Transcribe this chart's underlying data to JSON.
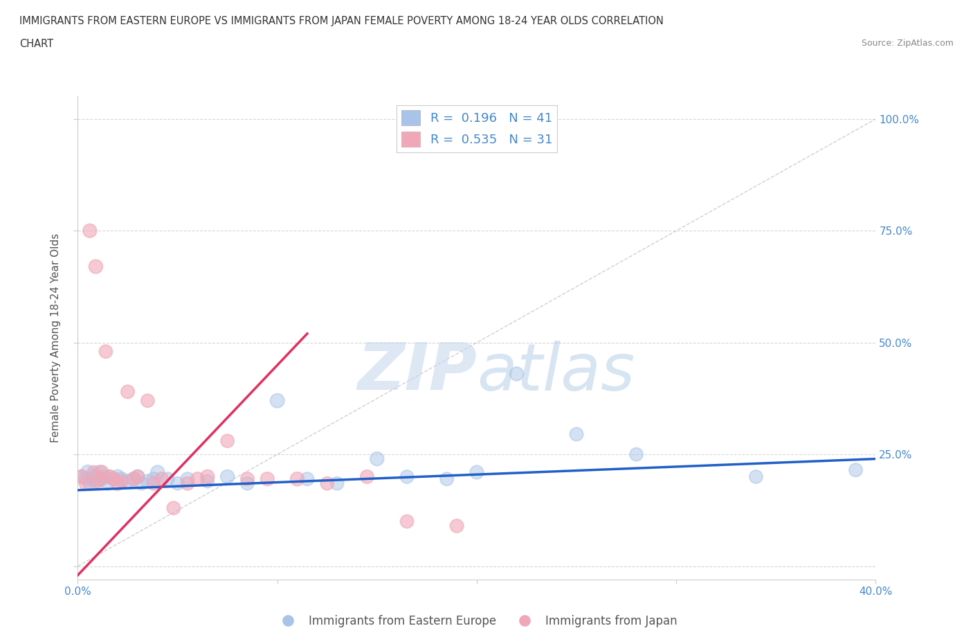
{
  "title_line1": "IMMIGRANTS FROM EASTERN EUROPE VS IMMIGRANTS FROM JAPAN FEMALE POVERTY AMONG 18-24 YEAR OLDS CORRELATION",
  "title_line2": "CHART",
  "source_text": "Source: ZipAtlas.com",
  "ylabel": "Female Poverty Among 18-24 Year Olds",
  "xlim": [
    0.0,
    0.4
  ],
  "ylim": [
    -0.03,
    1.05
  ],
  "watermark_zip": "ZIP",
  "watermark_atlas": "atlas",
  "R_blue": 0.196,
  "N_blue": 41,
  "R_pink": 0.535,
  "N_pink": 31,
  "legend_label_blue": "Immigrants from Eastern Europe",
  "legend_label_pink": "Immigrants from Japan",
  "blue_color": "#a8c4e8",
  "pink_color": "#f0a8b8",
  "blue_line_color": "#2060c8",
  "pink_line_color": "#e03060",
  "scatter_blue": {
    "x": [
      0.002,
      0.004,
      0.005,
      0.006,
      0.007,
      0.008,
      0.009,
      0.01,
      0.011,
      0.012,
      0.013,
      0.015,
      0.016,
      0.018,
      0.02,
      0.022,
      0.025,
      0.028,
      0.03,
      0.032,
      0.035,
      0.038,
      0.04,
      0.045,
      0.05,
      0.055,
      0.065,
      0.075,
      0.085,
      0.1,
      0.115,
      0.13,
      0.15,
      0.165,
      0.185,
      0.2,
      0.22,
      0.25,
      0.28,
      0.34,
      0.39
    ],
    "y": [
      0.2,
      0.195,
      0.21,
      0.185,
      0.195,
      0.2,
      0.19,
      0.195,
      0.21,
      0.195,
      0.2,
      0.185,
      0.2,
      0.195,
      0.2,
      0.195,
      0.19,
      0.195,
      0.2,
      0.185,
      0.19,
      0.195,
      0.21,
      0.195,
      0.185,
      0.195,
      0.19,
      0.2,
      0.185,
      0.37,
      0.195,
      0.185,
      0.24,
      0.2,
      0.195,
      0.21,
      0.43,
      0.295,
      0.25,
      0.2,
      0.215
    ],
    "sizes": [
      200,
      180,
      220,
      190,
      200,
      210,
      195,
      200,
      210,
      195,
      200,
      185,
      190,
      200,
      205,
      195,
      190,
      200,
      195,
      185,
      190,
      195,
      200,
      190,
      185,
      190,
      185,
      200,
      185,
      210,
      190,
      185,
      200,
      185,
      190,
      195,
      200,
      190,
      185,
      185,
      190
    ]
  },
  "scatter_pink": {
    "x": [
      0.002,
      0.004,
      0.006,
      0.008,
      0.009,
      0.01,
      0.011,
      0.012,
      0.014,
      0.016,
      0.018,
      0.02,
      0.022,
      0.025,
      0.028,
      0.03,
      0.035,
      0.038,
      0.042,
      0.048,
      0.055,
      0.06,
      0.065,
      0.075,
      0.085,
      0.095,
      0.11,
      0.125,
      0.145,
      0.165,
      0.19
    ],
    "y": [
      0.2,
      0.185,
      0.75,
      0.21,
      0.67,
      0.19,
      0.195,
      0.21,
      0.48,
      0.2,
      0.195,
      0.185,
      0.19,
      0.39,
      0.195,
      0.2,
      0.37,
      0.185,
      0.195,
      0.13,
      0.185,
      0.195,
      0.2,
      0.28,
      0.195,
      0.195,
      0.195,
      0.185,
      0.2,
      0.1,
      0.09
    ],
    "sizes": [
      200,
      190,
      195,
      185,
      200,
      190,
      195,
      200,
      185,
      190,
      195,
      200,
      185,
      190,
      195,
      200,
      185,
      190,
      195,
      185,
      190,
      195,
      200,
      185,
      190,
      195,
      200,
      185,
      190,
      185,
      190
    ]
  },
  "blue_trend_x": [
    0.0,
    0.4
  ],
  "blue_trend_y": [
    0.17,
    0.24
  ],
  "pink_trend_x": [
    0.0,
    0.115
  ],
  "pink_trend_y": [
    -0.02,
    0.52
  ],
  "ref_line_x": [
    0.0,
    0.4
  ],
  "ref_line_y": [
    0.0,
    1.0
  ],
  "background_color": "#ffffff",
  "grid_color": "#cccccc",
  "axis_color": "#4488cc"
}
